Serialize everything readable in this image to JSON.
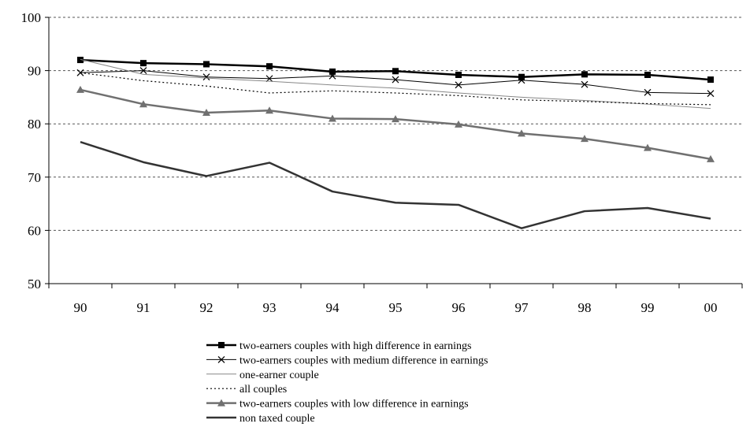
{
  "chart_data": {
    "type": "line",
    "title": "",
    "xlabel": "",
    "ylabel": "",
    "categories": [
      "90",
      "91",
      "92",
      "93",
      "94",
      "95",
      "96",
      "97",
      "98",
      "99",
      "00"
    ],
    "ylim": [
      50,
      100
    ],
    "yticks": [
      50,
      60,
      70,
      80,
      90,
      100
    ],
    "grid": "horizontal-dashed",
    "legend_position": "bottom",
    "series": [
      {
        "name": "two-earners couples with high difference in earnings",
        "values": [
          92.0,
          91.4,
          91.2,
          90.8,
          89.8,
          89.9,
          89.2,
          88.8,
          89.3,
          89.2,
          88.3
        ],
        "color": "#000000",
        "stroke_width": 2.5,
        "dash": "",
        "marker": "square"
      },
      {
        "name": "two-earners couples with medium difference in earnings",
        "values": [
          89.6,
          90.0,
          88.8,
          88.5,
          89.0,
          88.3,
          87.3,
          88.2,
          87.4,
          85.9,
          85.7
        ],
        "color": "#000000",
        "stroke_width": 1,
        "dash": "",
        "marker": "x"
      },
      {
        "name": "one-earner couple",
        "values": [
          92.1,
          89.3,
          88.6,
          88.0,
          87.3,
          86.7,
          85.8,
          85.0,
          84.4,
          83.7,
          82.9
        ],
        "color": "#888888",
        "stroke_width": 1,
        "dash": "",
        "marker": "none"
      },
      {
        "name": "all couples",
        "values": [
          89.6,
          88.1,
          87.1,
          85.8,
          86.2,
          85.8,
          85.3,
          84.5,
          84.2,
          83.8,
          83.6
        ],
        "color": "#000000",
        "stroke_width": 1.2,
        "dash": "2,3",
        "marker": "none"
      },
      {
        "name": "two-earners couples with low difference in earnings",
        "values": [
          86.4,
          83.7,
          82.1,
          82.5,
          81.0,
          80.9,
          79.9,
          78.2,
          77.2,
          75.5,
          73.4
        ],
        "color": "#707070",
        "stroke_width": 2.5,
        "dash": "",
        "marker": "triangle"
      },
      {
        "name": "non taxed couple",
        "values": [
          76.6,
          72.8,
          70.2,
          72.7,
          67.3,
          65.2,
          64.8,
          60.4,
          63.6,
          64.2,
          62.2
        ],
        "color": "#333333",
        "stroke_width": 2.5,
        "dash": "",
        "marker": "none"
      }
    ]
  }
}
